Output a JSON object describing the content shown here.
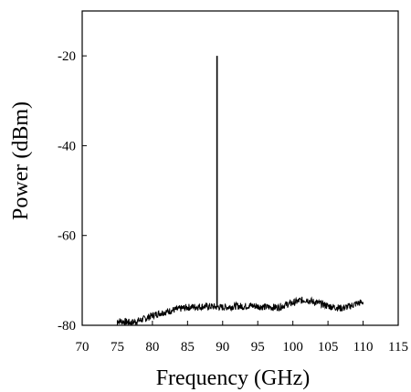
{
  "chart_data": {
    "type": "line",
    "title": "",
    "xlabel": "Frequency (GHz)",
    "ylabel": "Power (dBm)",
    "xlim": [
      70,
      115
    ],
    "ylim": [
      -80,
      -10
    ],
    "xticks": [
      70,
      75,
      80,
      85,
      90,
      95,
      100,
      105,
      110,
      115
    ],
    "yticks": [
      -80,
      -60,
      -40,
      -20
    ],
    "grid": false,
    "legend": "none",
    "line_color": "#000000",
    "peak": {
      "x": 89.2,
      "y": -20
    },
    "series": [
      {
        "x": [
          75,
          76,
          77,
          78,
          79,
          80,
          81,
          82,
          83,
          84,
          85,
          86,
          87,
          88,
          89,
          89.2,
          89.4,
          90,
          91,
          92,
          93,
          94,
          95,
          96,
          97,
          98,
          99,
          100,
          101,
          102,
          103,
          104,
          105,
          106,
          107,
          108,
          109,
          110
        ],
        "values": [
          -79,
          -79.2,
          -79.4,
          -79,
          -78.5,
          -77.8,
          -77.3,
          -77,
          -76.6,
          -76.3,
          -76,
          -75.9,
          -75.8,
          -75.8,
          -75.9,
          -20,
          -75.9,
          -76,
          -75.9,
          -75.7,
          -75.8,
          -75.6,
          -75.8,
          -75.9,
          -76,
          -76,
          -75.4,
          -75,
          -74.5,
          -74.3,
          -74.8,
          -75.2,
          -75.7,
          -76,
          -76.2,
          -75.8,
          -75.2,
          -74.8
        ]
      }
    ]
  }
}
